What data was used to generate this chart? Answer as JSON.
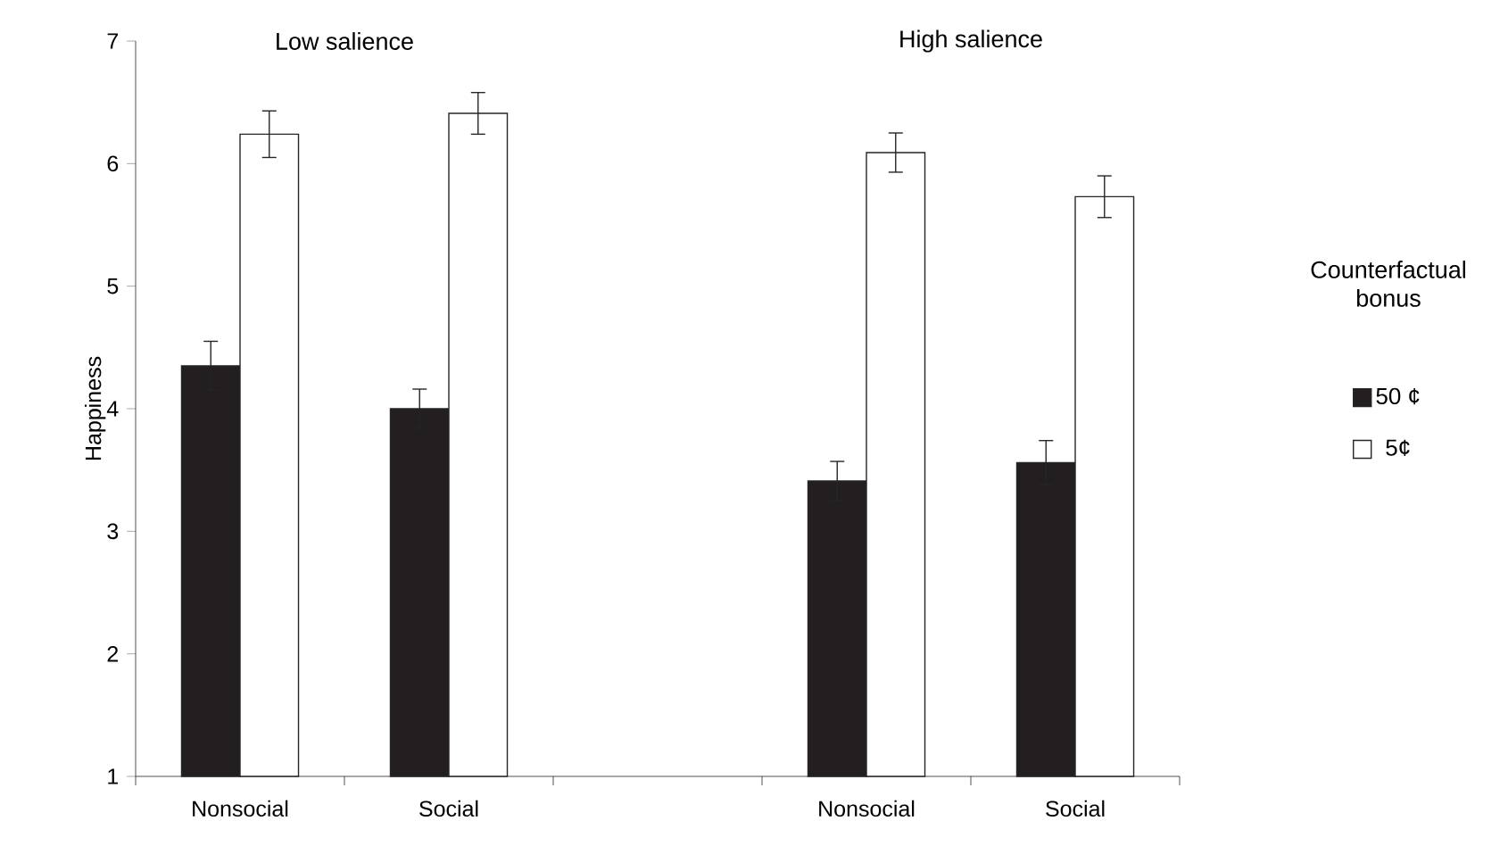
{
  "chart_data": {
    "type": "bar",
    "ylabel": "Happiness",
    "legend_title": "Counterfactual bonus",
    "categories": [
      "Nonsocial",
      "Social",
      null,
      "Nonsocial",
      "Social"
    ],
    "series": [
      {
        "name": "50 ¢",
        "color": "#231f20",
        "values": [
          4.35,
          4.0,
          null,
          3.41,
          3.56
        ],
        "errors": [
          0.2,
          0.16,
          null,
          0.16,
          0.18
        ]
      },
      {
        "name": "5¢",
        "color": "#ffffff",
        "values": [
          6.24,
          6.41,
          null,
          6.09,
          5.73
        ],
        "errors": [
          0.19,
          0.17,
          null,
          0.16,
          0.17
        ]
      }
    ],
    "annotations": [
      "Low salience",
      "High salience"
    ],
    "ylim": [
      1,
      7
    ],
    "yticks": [
      1,
      2,
      3,
      4,
      5,
      6,
      7
    ],
    "legend": "right"
  }
}
